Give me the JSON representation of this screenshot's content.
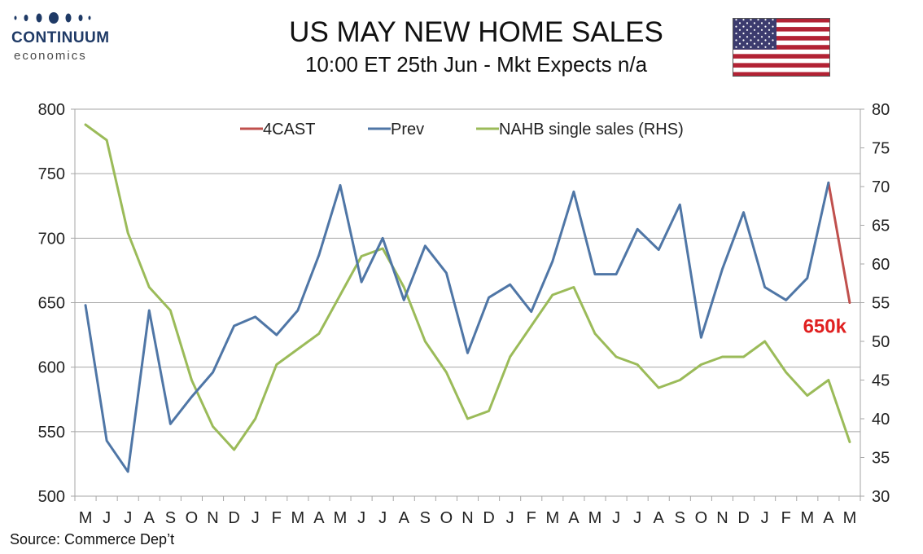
{
  "header": {
    "brand": "CONTINUUM",
    "brand_sub": "economics",
    "title": "US MAY NEW HOME SALES",
    "subtitle": "10:00 ET 25th Jun - Mkt Expects n/a"
  },
  "source": "Source: Commerce Dep’t",
  "colors": {
    "forecast": "#c0504d",
    "prev": "#4f76a6",
    "nahb": "#9bbb59",
    "grid": "#a6a6a6",
    "brand": "#1f3a66"
  },
  "chart_data": {
    "type": "line",
    "categories": [
      "M",
      "J",
      "J",
      "A",
      "S",
      "O",
      "N",
      "D",
      "J",
      "F",
      "M",
      "A",
      "M",
      "J",
      "J",
      "A",
      "S",
      "O",
      "N",
      "D",
      "J",
      "F",
      "M",
      "A",
      "M",
      "J",
      "J",
      "A",
      "S",
      "O",
      "N",
      "D",
      "J",
      "F",
      "M",
      "A",
      "M"
    ],
    "y_left": {
      "range": [
        500,
        800
      ],
      "ticks": [
        500,
        550,
        600,
        650,
        700,
        750,
        800
      ]
    },
    "y_right": {
      "range": [
        30,
        80
      ],
      "ticks": [
        30,
        35,
        40,
        45,
        50,
        55,
        60,
        65,
        70,
        75,
        80
      ]
    },
    "legend": [
      "4CAST",
      "Prev",
      "NAHB single sales (RHS)"
    ],
    "legend_position": "top",
    "grid": true,
    "series": [
      {
        "name": "Prev",
        "axis": "left",
        "color": "#4f76a6",
        "values": [
          648,
          543,
          519,
          644,
          556,
          577,
          596,
          632,
          639,
          625,
          644,
          687,
          741,
          666,
          700,
          652,
          694,
          673,
          611,
          654,
          664,
          643,
          682,
          736,
          672,
          672,
          707,
          691,
          726,
          623,
          676,
          720,
          662,
          652,
          669,
          743,
          null
        ]
      },
      {
        "name": "4CAST",
        "axis": "left",
        "color": "#c0504d",
        "values": [
          null,
          null,
          null,
          null,
          null,
          null,
          null,
          null,
          null,
          null,
          null,
          null,
          null,
          null,
          null,
          null,
          null,
          null,
          null,
          null,
          null,
          null,
          null,
          null,
          null,
          null,
          null,
          null,
          null,
          null,
          null,
          null,
          null,
          null,
          null,
          743,
          650
        ]
      },
      {
        "name": "NAHB single sales (RHS)",
        "axis": "right",
        "color": "#9bbb59",
        "values": [
          78,
          76,
          64,
          57,
          54,
          45,
          39,
          36,
          40,
          47,
          49,
          51,
          56,
          61,
          62,
          57,
          50,
          46,
          40,
          41,
          48,
          52,
          56,
          57,
          51,
          48,
          47,
          44,
          45,
          47,
          48,
          48,
          50,
          46,
          43,
          45,
          37
        ]
      }
    ],
    "annotations": [
      {
        "text": "650k"
      }
    ]
  }
}
